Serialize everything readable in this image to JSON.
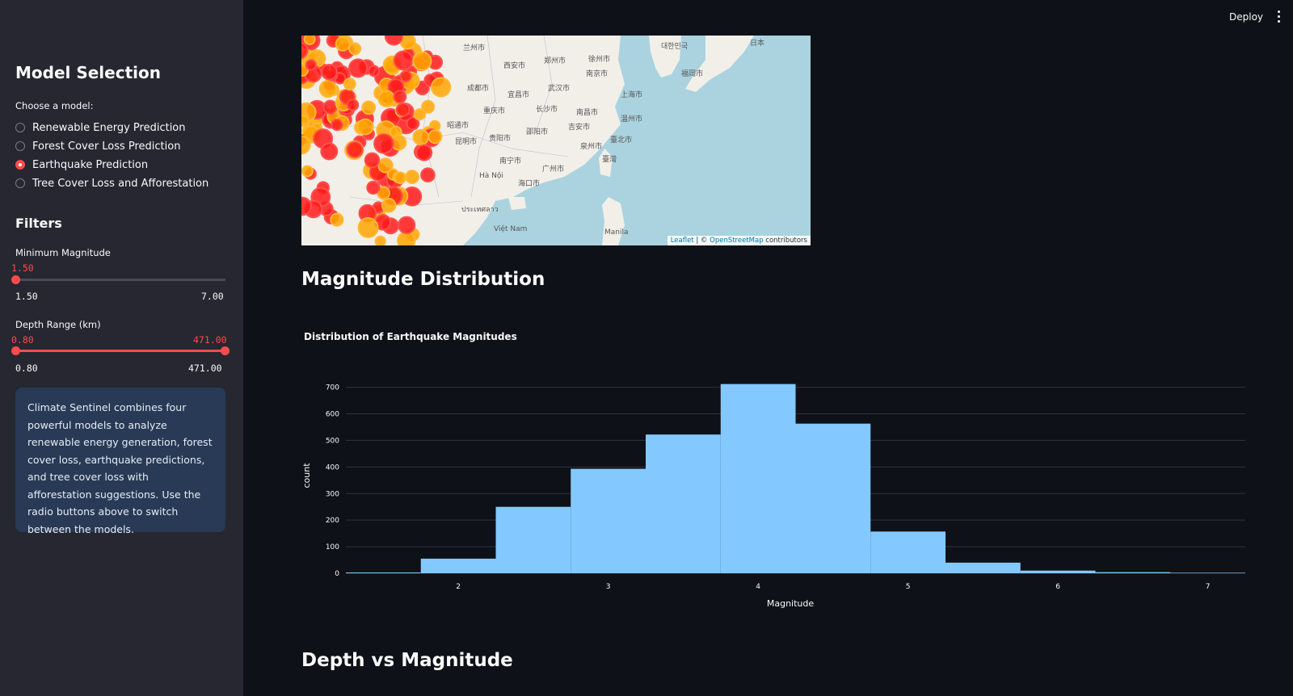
{
  "header": {
    "deploy_label": "Deploy"
  },
  "sidebar": {
    "title": "Model Selection",
    "choose_label": "Choose a model:",
    "models": [
      {
        "label": "Renewable Energy Prediction",
        "selected": false
      },
      {
        "label": "Forest Cover Loss Prediction",
        "selected": false
      },
      {
        "label": "Earthquake Prediction",
        "selected": true
      },
      {
        "label": "Tree Cover Loss and Afforestation",
        "selected": false
      }
    ],
    "filters_title": "Filters",
    "min_magnitude": {
      "label": "Minimum Magnitude",
      "value": "1.50",
      "min": "1.50",
      "max": "7.00"
    },
    "depth_range": {
      "label": "Depth Range (km)",
      "value_low": "0.80",
      "value_high": "471.00",
      "min": "0.80",
      "max": "471.00"
    },
    "info_text": "Climate Sentinel combines four powerful models to analyze renewable energy generation, forest cover loss, earthquake predictions, and tree cover loss with afforestation suggestions. Use the radio buttons above to switch between the models."
  },
  "map": {
    "attribution_leaflet": "Leaflet",
    "attribution_sep": " | © ",
    "attribution_osm": "OpenStreetMap",
    "attribution_tail": " contributors",
    "labels": [
      "兰州市",
      "西安市",
      "郑州市",
      "徐州市",
      "南京市",
      "成都市",
      "宜昌市",
      "武汉市",
      "上海市",
      "重庆市",
      "长沙市",
      "南昌市",
      "温州市",
      "昭通市",
      "贵阳市",
      "邵阳市",
      "吉安市",
      "昆明市",
      "泉州市",
      "臺北市",
      "南宁市",
      "广州市",
      "臺灣",
      "Hà Nội",
      "海口市",
      "Việt Nam",
      "Manila",
      "대한민국",
      "日本",
      "福岡市",
      "ประเทศลาว"
    ]
  },
  "sections": {
    "magnitude_title": "Magnitude Distribution",
    "depth_title": "Depth vs Magnitude"
  },
  "chart_data": {
    "type": "bar",
    "title": "Distribution of Earthquake Magnitudes",
    "xlabel": "Magnitude",
    "ylabel": "count",
    "bin_width": 0.5,
    "x": [
      1.5,
      2.0,
      2.5,
      3.0,
      3.5,
      4.0,
      4.5,
      5.0,
      5.5,
      6.0,
      6.5,
      7.0
    ],
    "values": [
      3,
      55,
      250,
      393,
      522,
      712,
      563,
      157,
      40,
      10,
      4,
      2
    ],
    "xlim": [
      1.25,
      7.25
    ],
    "ylim": [
      0,
      720
    ],
    "xticks": [
      2,
      3,
      4,
      5,
      6,
      7
    ],
    "yticks": [
      0,
      100,
      200,
      300,
      400,
      500,
      600,
      700
    ],
    "bar_color": "#83c9ff",
    "grid": true
  }
}
